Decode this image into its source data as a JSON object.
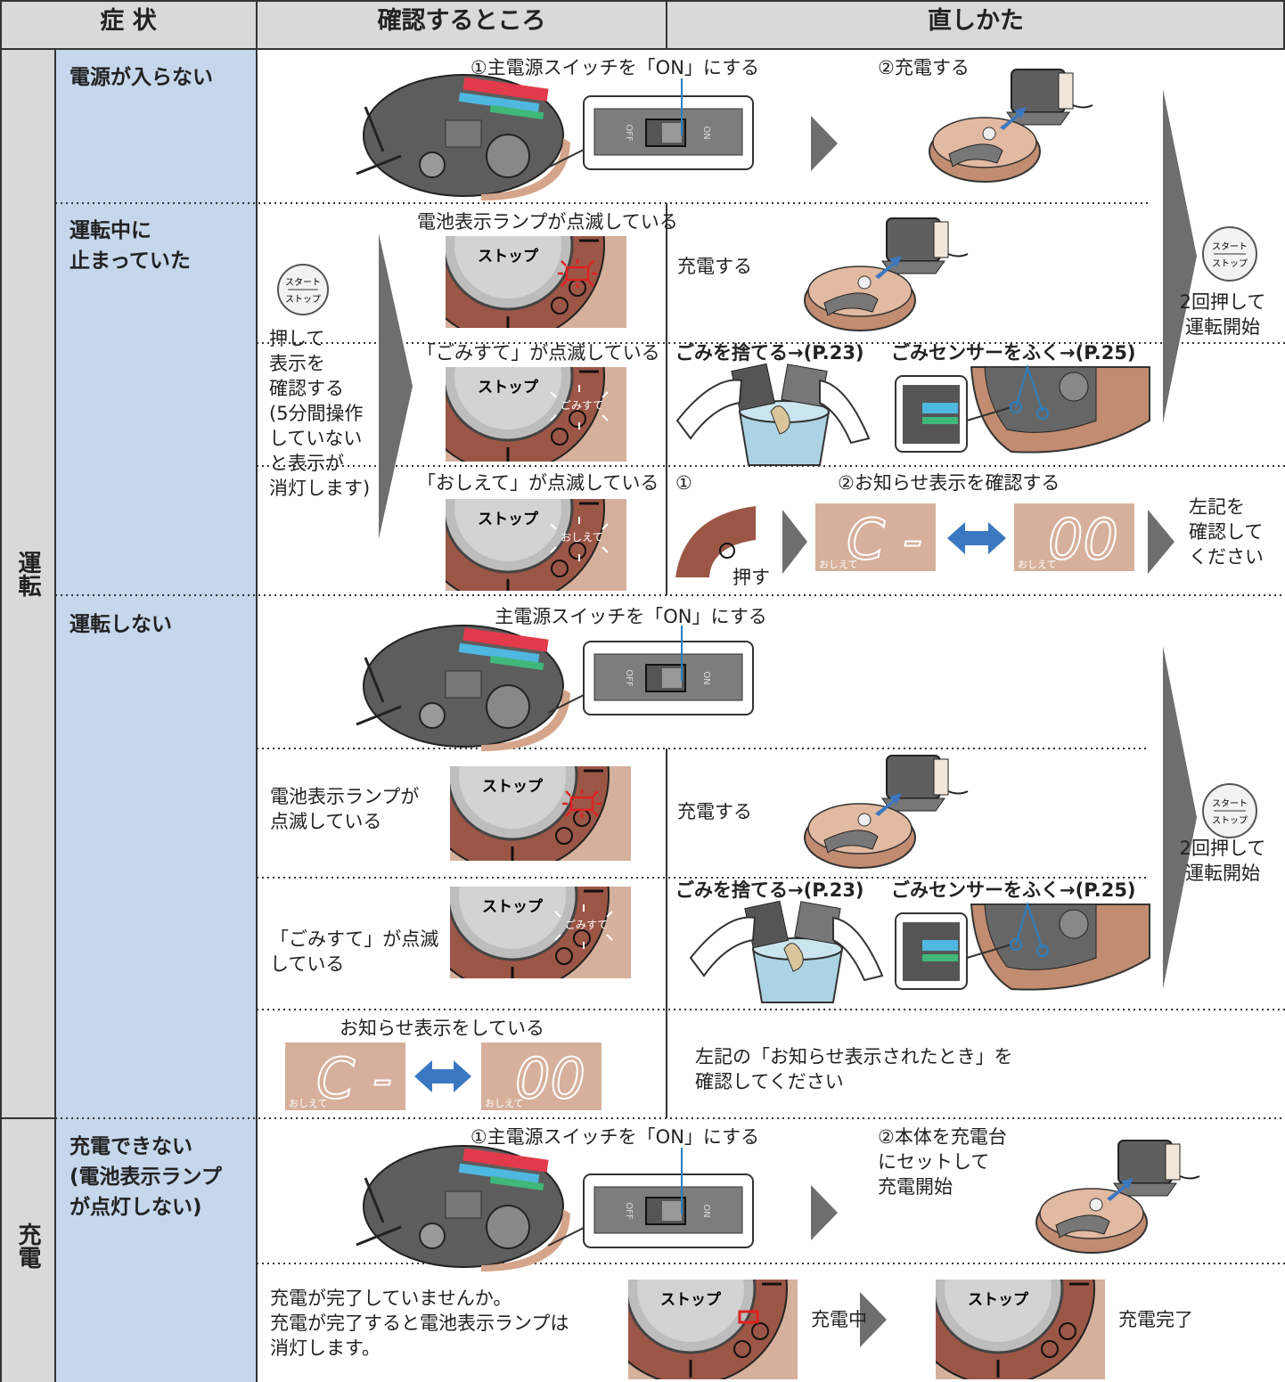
{
  "header": {
    "symptom": "症 状",
    "check": "確認するところ",
    "fix": "直しかた"
  },
  "categories": {
    "run": "運転",
    "charge": "充電"
  },
  "icon_labels": {
    "start": "スタート",
    "stop": "ストップ",
    "dust": "ごみすて",
    "teach": "おしえて",
    "code1": "C -",
    "code2": "00",
    "off": "OFF",
    "on": "ON"
  },
  "rows": [
    {
      "symptom": "電源が入らない",
      "step1": "①主電源スイッチを「ON」にする",
      "step2": "②充電する"
    },
    {
      "symptom": "運転中に\n止まっていた",
      "note": "押して\n表示を\n確認する\n(5分間操作\nしていない\nと表示が\n消灯します)",
      "cases": [
        {
          "check": "電池表示ランプが点滅している",
          "fix": "充電する"
        },
        {
          "check": "「ごみすて」が点滅している",
          "fix": "ごみを捨てる→(P.23)",
          "fix2": "ごみセンサーをふく→(P.25)"
        },
        {
          "check": "「おしえて」が点滅している",
          "fix": "①",
          "fix2": "②お知らせ表示を確認する",
          "press": "押す",
          "result": "左記を\n確認して\nください"
        }
      ],
      "action": "2回押して\n運転開始"
    },
    {
      "symptom": "運転しない",
      "switch": "主電源スイッチを「ON」にする",
      "cases": [
        {
          "check": "電池表示ランプが\n点滅している",
          "fix": "充電する"
        },
        {
          "check": "「ごみすて」が点滅\nしている",
          "fix": "ごみを捨てる→(P.23)",
          "fix2": "ごみセンサーをふく→(P.25)"
        },
        {
          "check": "お知らせ表示をしている",
          "fix": "左記の「お知らせ表示されたとき」を\n確認してください"
        }
      ],
      "action": "2回押して\n運転開始"
    },
    {
      "symptom": "充電できない\n(電池表示ランプ\nが点灯しない)",
      "step1": "①主電源スイッチを「ON」にする",
      "step2": "②本体を充電台\nにセットして\n充電開始",
      "check": "充電が完了していませんか。\n充電が完了すると電池表示ランプは\n消灯します。",
      "status1": "充電中",
      "status2": "充電完了"
    }
  ]
}
